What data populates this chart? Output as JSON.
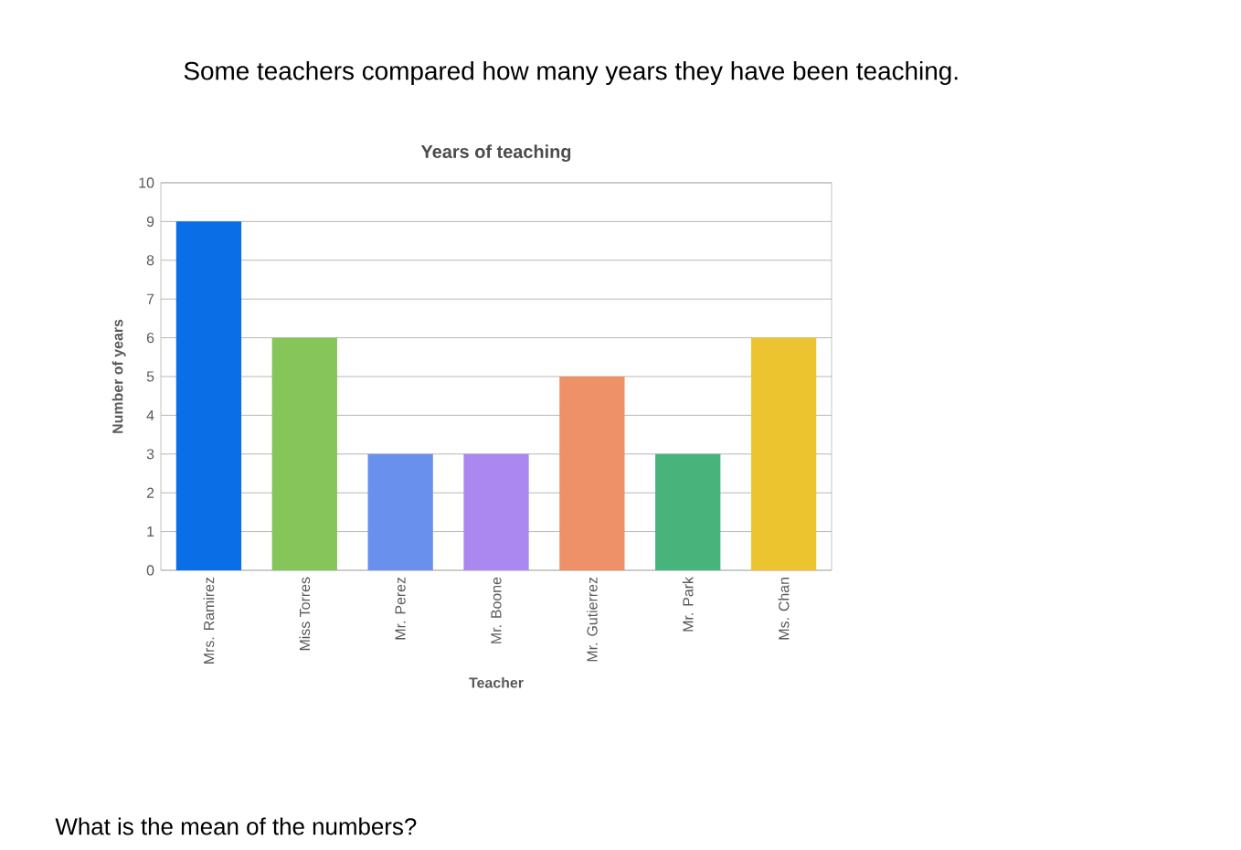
{
  "chart_data": {
    "type": "bar",
    "title": "Years of teaching",
    "xlabel": "Teacher",
    "ylabel": "Number of years",
    "categories": [
      "Mrs. Ramirez",
      "Miss Torres",
      "Mr. Perez",
      "Mr. Boone",
      "Mr. Gutierrez",
      "Mr. Park",
      "Ms. Chan"
    ],
    "values": [
      9,
      6,
      3,
      3,
      5,
      3,
      6
    ],
    "colors": [
      "#0a6ee6",
      "#86c55a",
      "#6a90ee",
      "#aa88f0",
      "#ee9068",
      "#48b47c",
      "#ecc430"
    ],
    "ylim": [
      0,
      10
    ],
    "yticks": [
      0,
      1,
      2,
      3,
      4,
      5,
      6,
      7,
      8,
      9,
      10
    ],
    "grid": "y",
    "annotations": [
      "Some teachers compared how many years they have been teaching.",
      "What is the mean of the numbers?"
    ]
  }
}
